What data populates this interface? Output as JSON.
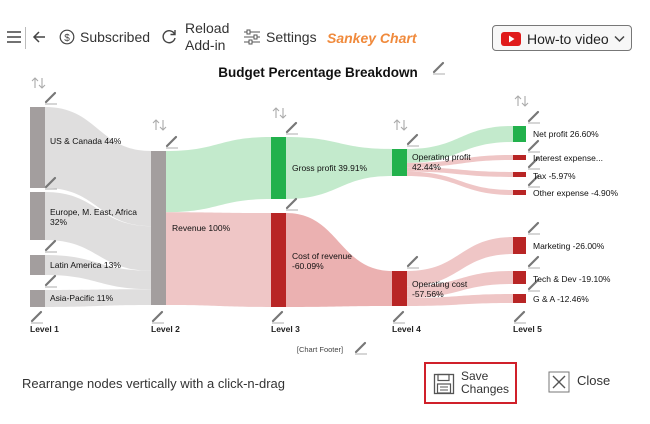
{
  "toolbar": {
    "subscribed_label": "Subscribed",
    "reload_label_line1": "Reload",
    "reload_label_line2": "Add-in",
    "settings_label": "Settings",
    "app_title": "Sankey Chart",
    "howto_label": "How-to video",
    "icons": [
      "hamburger-menu-icon",
      "back-arrow-icon",
      "dollar-circle-icon",
      "refresh-icon",
      "sliders-icon",
      "youtube-icon",
      "chevron-down-icon"
    ]
  },
  "chart_data": {
    "type": "sankey",
    "title": "Budget Percentage Breakdown",
    "footer": "[Chart Footer]",
    "levels": [
      "Level 1",
      "Level 2",
      "Level 3",
      "Level 4",
      "Level 5"
    ],
    "nodes": [
      {
        "id": "us",
        "level": 1,
        "label": "US & Canada 44%",
        "value": 44,
        "color": "#a39e9e"
      },
      {
        "id": "eu",
        "level": 1,
        "label_lines": [
          "Europe, M. East, Africa",
          "32%"
        ],
        "value": 32,
        "color": "#a39e9e"
      },
      {
        "id": "la",
        "level": 1,
        "label": "Latin America 13%",
        "value": 13,
        "color": "#a39e9e"
      },
      {
        "id": "ap",
        "level": 1,
        "label": "Asia-Pacific 11%",
        "value": 11,
        "color": "#a39e9e"
      },
      {
        "id": "rev",
        "level": 2,
        "label": "Revenue 100%",
        "value": 100,
        "color": "#a39e9e"
      },
      {
        "id": "gp",
        "level": 3,
        "label": "Gross profit 39.91%",
        "value": 39.91,
        "color": "#22b14c"
      },
      {
        "id": "cor",
        "level": 3,
        "label_lines": [
          "Cost of revenue",
          "-60.09%"
        ],
        "value": -60.09,
        "color": "#b82525"
      },
      {
        "id": "op",
        "level": 4,
        "label_lines": [
          "Operating profit",
          "42.44%"
        ],
        "value": 42.44,
        "color": "#22b14c"
      },
      {
        "id": "oc",
        "level": 4,
        "label_lines": [
          "Operating cost",
          "-57.56%"
        ],
        "value": -57.56,
        "color": "#b82525"
      },
      {
        "id": "np",
        "level": 5,
        "label": "Net profit 26.60%",
        "value": 26.6,
        "color": "#22b14c"
      },
      {
        "id": "ie",
        "level": 5,
        "label": "Interest expense...",
        "value": null,
        "color": "#b82525"
      },
      {
        "id": "tax",
        "level": 5,
        "label": "Tax -5.97%",
        "value": -5.97,
        "color": "#b82525"
      },
      {
        "id": "oe",
        "level": 5,
        "label": "Other expense -4.90%",
        "value": -4.9,
        "color": "#b82525"
      },
      {
        "id": "mk",
        "level": 5,
        "label": "Marketing -26.00%",
        "value": -26.0,
        "color": "#b82525"
      },
      {
        "id": "td",
        "level": 5,
        "label": "Tech & Dev -19.10%",
        "value": -19.1,
        "color": "#b82525"
      },
      {
        "id": "ga",
        "level": 5,
        "label": "G & A -12.46%",
        "value": -12.46,
        "color": "#b82525"
      }
    ],
    "links": [
      {
        "source": "us",
        "target": "rev",
        "color": "#dcdada"
      },
      {
        "source": "eu",
        "target": "rev",
        "color": "#dcdada"
      },
      {
        "source": "la",
        "target": "rev",
        "color": "#dcdada"
      },
      {
        "source": "ap",
        "target": "rev",
        "color": "#dcdada"
      },
      {
        "source": "rev",
        "target": "gp",
        "color": "#bde8c6"
      },
      {
        "source": "rev",
        "target": "cor",
        "color": "#edc0c0"
      },
      {
        "source": "gp",
        "target": "op",
        "color": "#bde8c6"
      },
      {
        "source": "cor",
        "target": "oc",
        "color": "#e9a9a9"
      },
      {
        "source": "op",
        "target": "np",
        "color": "#bde8c6"
      },
      {
        "source": "op",
        "target": "ie",
        "color": "#edc0c0"
      },
      {
        "source": "op",
        "target": "tax",
        "color": "#edc0c0"
      },
      {
        "source": "op",
        "target": "oe",
        "color": "#edc0c0"
      },
      {
        "source": "oc",
        "target": "mk",
        "color": "#edc0c0"
      },
      {
        "source": "oc",
        "target": "td",
        "color": "#edc0c0"
      },
      {
        "source": "oc",
        "target": "ga",
        "color": "#edc0c0"
      }
    ]
  },
  "footer_bar": {
    "hint": "Rearrange nodes vertically with a click-n-drag",
    "save_line1": "Save",
    "save_line2": "Changes",
    "close_label": "Close"
  }
}
